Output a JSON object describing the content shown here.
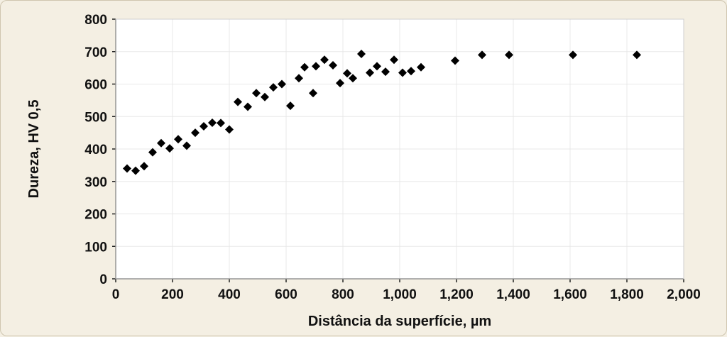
{
  "chart_data": {
    "type": "scatter",
    "title": "",
    "xlabel": "Distância da superfície, µm",
    "ylabel": "Dureza, HV 0,5",
    "xlim": [
      0,
      2000
    ],
    "ylim": [
      0,
      800
    ],
    "x_ticks": [
      0,
      200,
      400,
      600,
      800,
      1000,
      1200,
      1400,
      1600,
      1800,
      2000
    ],
    "x_tick_labels": [
      "0",
      "200",
      "400",
      "600",
      "800",
      "1,000",
      "1,200",
      "1,400",
      "1,600",
      "1,800",
      "2,000"
    ],
    "y_ticks": [
      0,
      100,
      200,
      300,
      400,
      500,
      600,
      700,
      800
    ],
    "y_tick_labels": [
      "0",
      "100",
      "200",
      "300",
      "400",
      "500",
      "600",
      "700",
      "800"
    ],
    "grid": true,
    "legend": "none",
    "marker": "diamond",
    "marker_color": "#000000",
    "grid_color": "#e8e8e8",
    "series": [
      {
        "x": [
          40,
          70,
          100,
          130,
          160,
          190,
          220,
          250,
          280,
          310,
          340,
          370,
          400,
          430,
          465,
          495,
          525,
          555,
          585,
          615,
          645,
          665,
          695,
          705,
          735,
          765,
          790,
          815,
          835,
          865,
          895,
          920,
          950,
          980,
          1010,
          1040,
          1075,
          1195,
          1290,
          1385,
          1610,
          1835
        ],
        "y": [
          340,
          333,
          347,
          390,
          418,
          402,
          430,
          410,
          450,
          470,
          481,
          480,
          460,
          545,
          530,
          572,
          560,
          590,
          600,
          533,
          618,
          652,
          572,
          655,
          675,
          658,
          603,
          633,
          618,
          693,
          635,
          655,
          638,
          675,
          635,
          640,
          652,
          672,
          690,
          690,
          690,
          690
        ]
      }
    ]
  }
}
